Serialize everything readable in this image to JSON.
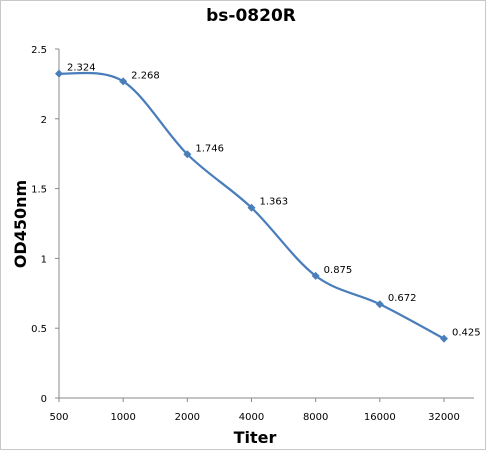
{
  "chart_data": {
    "type": "line",
    "title": "bs-0820R",
    "xlabel": "Titer",
    "ylabel": "OD450nm",
    "categories": [
      "500",
      "1000",
      "2000",
      "4000",
      "8000",
      "16000",
      "32000"
    ],
    "series": [
      {
        "values": [
          2.324,
          2.268,
          1.746,
          1.363,
          0.875,
          0.672,
          0.425
        ],
        "labels": [
          "2.324",
          "2.268",
          "1.746",
          "1.363",
          "0.875",
          "0.672",
          "0.425"
        ],
        "color": "#4a7ebb",
        "marker": "diamond",
        "smooth": true
      }
    ],
    "yticks": [
      "0",
      "0.5",
      "1",
      "1.5",
      "2",
      "2.5"
    ],
    "ylim": [
      0,
      2.5
    ],
    "grid": false,
    "legend": "none"
  }
}
